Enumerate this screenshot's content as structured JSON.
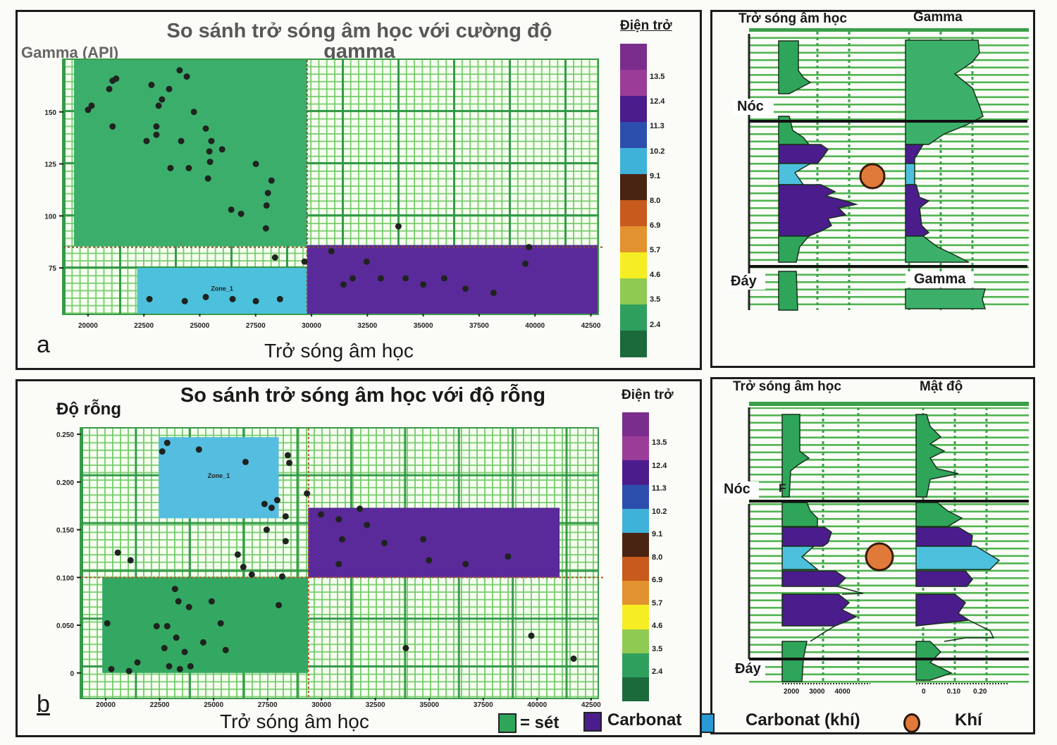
{
  "panel_a": {
    "label": "a",
    "title_line1": "So sánh trở sóng âm học với cường độ",
    "title_line2": "gamma",
    "y_label": "Gamma (API)",
    "x_label": "Trở sóng âm học",
    "colorbar_title": "Điện trở"
  },
  "panel_b": {
    "label": "b",
    "title": "So sánh trở sóng âm học với độ rỗng",
    "y_label": "Độ rỗng",
    "x_label": "Trở sóng âm học",
    "colorbar_title": "Điện trở"
  },
  "colorbar": {
    "ticks": [
      "13.5",
      "12.4",
      "11.3",
      "10.2",
      "9.1",
      "8.0",
      "6.9",
      "5.7",
      "4.6",
      "3.5",
      "2.4"
    ],
    "colors": [
      "#7b2d8e",
      "#9a3c98",
      "#4b1c8c",
      "#2c4fae",
      "#3fb2d9",
      "#4a2412",
      "#c75a1c",
      "#e2922e",
      "#f6ee22",
      "#8fca52",
      "#2f9f5e",
      "#1b6a3c"
    ]
  },
  "well_a": {
    "track1_title": "Trở sóng âm học",
    "track2_title": "Gamma",
    "top_label": "Nóc",
    "base_label": "Đáy",
    "lower_track_label": "Gamma"
  },
  "well_b": {
    "track1_title": "Trở sóng âm học",
    "track2_title": "Mật độ",
    "top_label": "Nóc",
    "base_label": "Đáy",
    "marker": "F",
    "track1_ticks": [
      "2000",
      "3000",
      "4000"
    ],
    "track2_ticks": [
      "0",
      "0.10",
      "0.20"
    ]
  },
  "legend": {
    "items": [
      {
        "label": "= sét",
        "color": "#2fa55a"
      },
      {
        "label": "Carbonat",
        "color": "#4b1c8c"
      },
      {
        "label": "",
        "color": "#2a9ad6"
      },
      {
        "label": "Carbonat (khí)",
        "color": ""
      },
      {
        "label": "Khí",
        "color": "#e07a3a"
      }
    ]
  },
  "chart_data": [
    {
      "type": "scatter",
      "title": "So sánh trở sóng âm học với cường độ gamma",
      "xlabel": "Trở sóng âm học",
      "ylabel": "Gamma (API)",
      "xlim": [
        18900,
        42800
      ],
      "ylim": [
        53,
        175
      ],
      "xticks": [
        20000,
        22500,
        25000,
        27500,
        30000,
        32500,
        35000,
        37500,
        40000,
        42500
      ],
      "yticks": [
        75,
        100,
        125,
        150
      ],
      "grid": true,
      "cutoffs": {
        "x": 29800,
        "y": 85
      },
      "zones": [
        {
          "name": "sét",
          "x": [
            19370,
            29800
          ],
          "y": [
            85.5,
            175
          ],
          "color": "#3cae6c",
          "label": ""
        },
        {
          "name": "Carbonat (khí)",
          "x": [
            22200,
            29800
          ],
          "y": [
            53,
            75
          ],
          "color": "#4cc0dc",
          "label": "Zone_1"
        },
        {
          "name": "Carbonat",
          "x": [
            29800,
            42800
          ],
          "y": [
            53,
            86
          ],
          "color": "#5a2a9a",
          "label": ""
        }
      ],
      "points": [
        [
          21100,
          165
        ],
        [
          20950,
          161
        ],
        [
          21260,
          166
        ],
        [
          20160,
          153
        ],
        [
          20000,
          151
        ],
        [
          22840,
          163
        ],
        [
          23310,
          156
        ],
        [
          23630,
          161
        ],
        [
          24100,
          170
        ],
        [
          24420,
          167
        ],
        [
          23160,
          153
        ],
        [
          21100,
          143
        ],
        [
          23060,
          143
        ],
        [
          23060,
          139
        ],
        [
          22620,
          136
        ],
        [
          24170,
          136
        ],
        [
          24740,
          150
        ],
        [
          25270,
          142
        ],
        [
          25520,
          136
        ],
        [
          26000,
          132
        ],
        [
          25430,
          131
        ],
        [
          25460,
          126
        ],
        [
          23690,
          123
        ],
        [
          24510,
          123
        ],
        [
          25370,
          118
        ],
        [
          27510,
          125
        ],
        [
          28210,
          117
        ],
        [
          28050,
          111
        ],
        [
          27990,
          105
        ],
        [
          26410,
          103
        ],
        [
          26850,
          101
        ],
        [
          27960,
          94
        ],
        [
          28370,
          80
        ],
        [
          29690,
          78
        ],
        [
          22750,
          60
        ],
        [
          24330,
          59
        ],
        [
          25270,
          61
        ],
        [
          26470,
          60
        ],
        [
          27510,
          59
        ],
        [
          28590,
          60
        ],
        [
          30890,
          83
        ],
        [
          31840,
          70
        ],
        [
          32470,
          78
        ],
        [
          31430,
          67
        ],
        [
          33100,
          70
        ],
        [
          34210,
          70
        ],
        [
          35000,
          67
        ],
        [
          35940,
          70
        ],
        [
          36890,
          65
        ],
        [
          38150,
          63
        ],
        [
          39570,
          77
        ],
        [
          39730,
          85
        ],
        [
          33890,
          95
        ]
      ]
    },
    {
      "type": "scatter",
      "title": "So sánh trở sóng âm học với độ rỗng",
      "xlabel": "Trở sóng âm học",
      "ylabel": "Độ rỗng",
      "xlim": [
        18855,
        42800
      ],
      "ylim": [
        -0.026,
        0.256
      ],
      "xticks": [
        20000,
        22500,
        25000,
        27500,
        30000,
        32500,
        35000,
        37500,
        40000,
        42500
      ],
      "yticks": [
        "0",
        "0.050",
        "0.100",
        "0.150",
        "0.200",
        "0.250"
      ],
      "grid": true,
      "cutoffs": {
        "x": 29400,
        "y": 0.1
      },
      "zones": [
        {
          "name": "sét",
          "x": [
            19840,
            29380
          ],
          "y": [
            0,
            0.1
          ],
          "color": "#33a862",
          "label": ""
        },
        {
          "name": "Carbonat (khí)",
          "x": [
            22460,
            28020
          ],
          "y": [
            0.162,
            0.247
          ],
          "color": "#55bde0",
          "label": "Zone_1"
        },
        {
          "name": "Carbonat",
          "x": [
            29380,
            41040
          ],
          "y": [
            0.1,
            0.173
          ],
          "color": "#5a2a9a",
          "label": ""
        }
      ],
      "points": [
        [
          22850,
          0.241
        ],
        [
          22620,
          0.232
        ],
        [
          24320,
          0.234
        ],
        [
          26480,
          0.221
        ],
        [
          28440,
          0.228
        ],
        [
          28510,
          0.22
        ],
        [
          27360,
          0.177
        ],
        [
          27690,
          0.173
        ],
        [
          27950,
          0.181
        ],
        [
          29330,
          0.188
        ],
        [
          28340,
          0.164
        ],
        [
          27460,
          0.15
        ],
        [
          28340,
          0.138
        ],
        [
          20560,
          0.126
        ],
        [
          21150,
          0.118
        ],
        [
          26120,
          0.124
        ],
        [
          26380,
          0.111
        ],
        [
          26770,
          0.103
        ],
        [
          28180,
          0.101
        ],
        [
          23210,
          0.088
        ],
        [
          23370,
          0.075
        ],
        [
          23860,
          0.069
        ],
        [
          24910,
          0.075
        ],
        [
          28020,
          0.071
        ],
        [
          20070,
          0.052
        ],
        [
          22360,
          0.049
        ],
        [
          22850,
          0.049
        ],
        [
          25330,
          0.052
        ],
        [
          23270,
          0.037
        ],
        [
          24520,
          0.032
        ],
        [
          22720,
          0.026
        ],
        [
          23660,
          0.022
        ],
        [
          25560,
          0.024
        ],
        [
          20260,
          0.004
        ],
        [
          21080,
          0.002
        ],
        [
          22940,
          0.007
        ],
        [
          23440,
          0.004
        ],
        [
          23930,
          0.007
        ],
        [
          21470,
          0.011
        ],
        [
          29980,
          0.166
        ],
        [
          30800,
          0.161
        ],
        [
          31780,
          0.172
        ],
        [
          32110,
          0.155
        ],
        [
          30960,
          0.14
        ],
        [
          32920,
          0.136
        ],
        [
          34720,
          0.14
        ],
        [
          34980,
          0.118
        ],
        [
          36680,
          0.114
        ],
        [
          38650,
          0.122
        ],
        [
          33910,
          0.026
        ],
        [
          39730,
          0.039
        ],
        [
          41690,
          0.015
        ],
        [
          30800,
          0.114
        ]
      ]
    }
  ]
}
